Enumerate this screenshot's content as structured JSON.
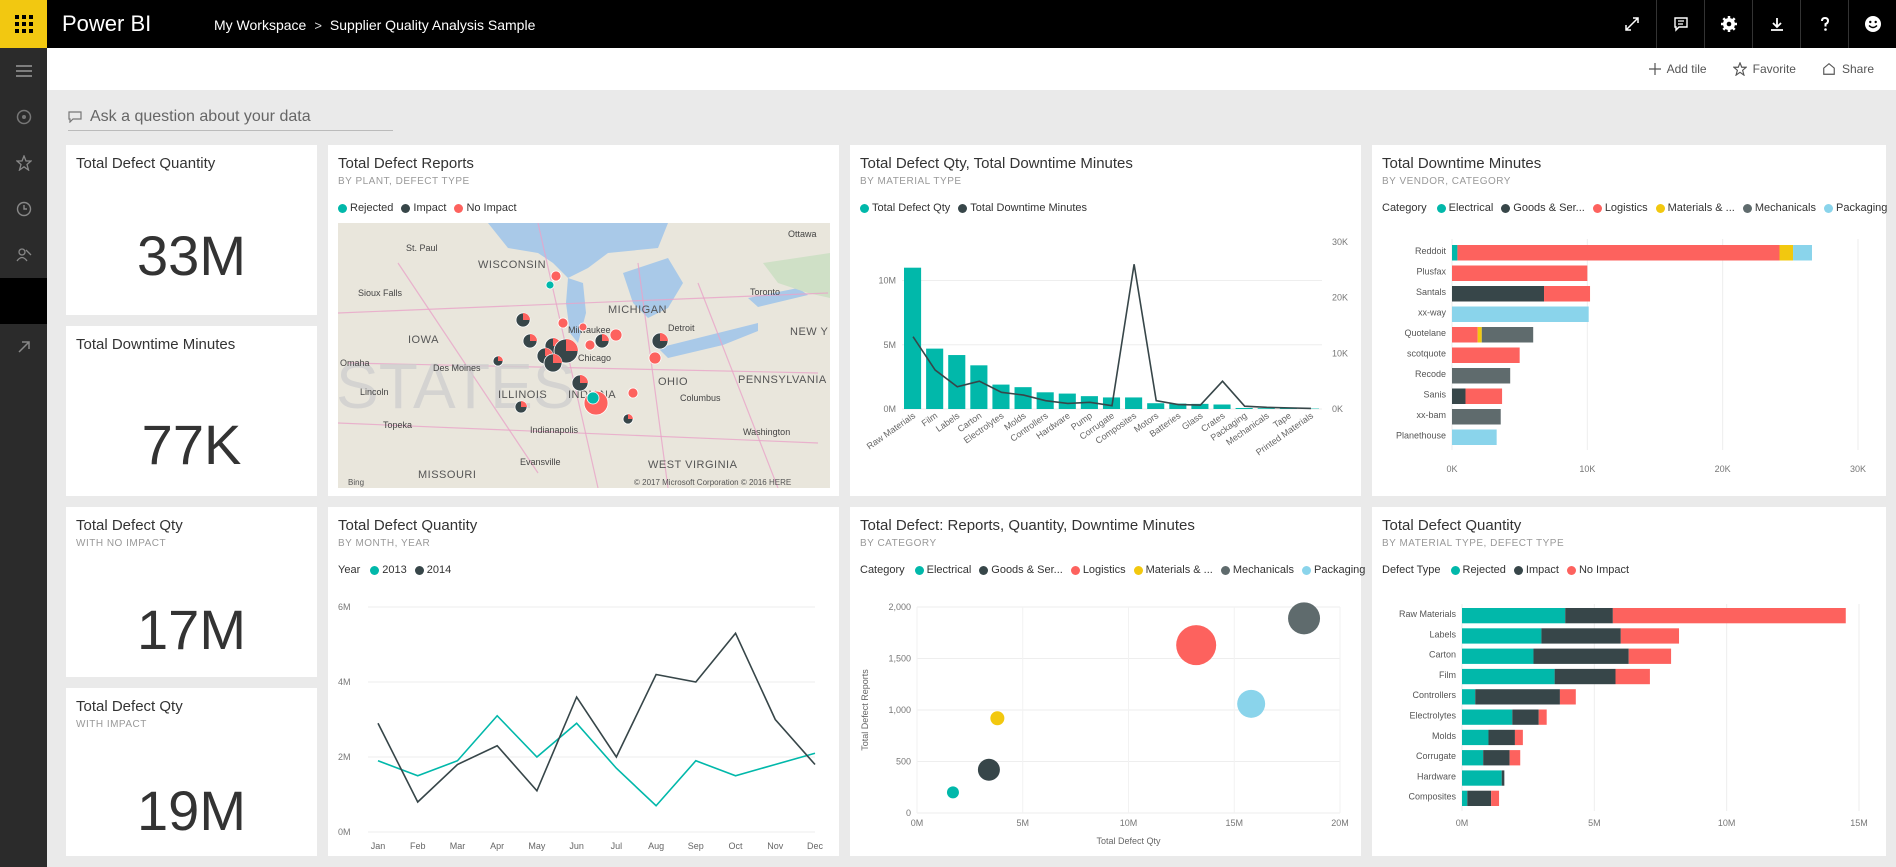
{
  "app": {
    "name": "Power BI",
    "breadcrumb": [
      "My Workspace",
      "Supplier Quality Analysis Sample"
    ],
    "breadcrumb_sep": ">"
  },
  "topbar_icons": [
    "fullscreen-icon",
    "comment-icon",
    "settings-gear-icon",
    "download-icon",
    "help-icon",
    "smiley-feedback-icon"
  ],
  "leftnav_icons": [
    "hamburger-menu-icon",
    "home-icon",
    "favorites-star-icon",
    "recent-clock-icon",
    "apps-icon",
    "workspaces-icon",
    "get-data-arrow-icon"
  ],
  "actions": {
    "add_tile": "Add tile",
    "favorite": "Favorite",
    "share": "Share"
  },
  "qa": {
    "placeholder": "Ask a question about your data"
  },
  "colors": {
    "teal": "#01b8aa",
    "dark": "#374649",
    "red": "#fd625e",
    "yellow": "#f2c80f",
    "gray": "#5f6b6d",
    "lightblue": "#8ad4eb",
    "black": "#000000",
    "brand": "#f2c811"
  },
  "cards": [
    {
      "title": "Total Defect Quantity",
      "subtitle": "",
      "value": "33M"
    },
    {
      "title": "Total Downtime Minutes",
      "subtitle": "",
      "value": "77K"
    },
    {
      "title": "Total Defect Qty",
      "subtitle": "WITH NO IMPACT",
      "value": "17M"
    },
    {
      "title": "Total Defect Qty",
      "subtitle": "WITH IMPACT",
      "value": "19M"
    }
  ],
  "map": {
    "title": "Total Defect Reports",
    "subtitle": "BY PLANT, DEFECT TYPE",
    "legend": [
      "Rejected",
      "Impact",
      "No Impact"
    ],
    "labels": {
      "states": [
        "WISCONSIN",
        "MICHIGAN",
        "IOWA",
        "ILLINOIS",
        "INDIANA",
        "OHIO",
        "PENNSYLVANIA",
        "NEW Y",
        "WEST VIRGINIA",
        "MISSOURI",
        "STATES"
      ],
      "cities": [
        "Ottawa",
        "St. Paul",
        "Toronto",
        "Sioux Falls",
        "Milwaukee",
        "Detroit",
        "Omaha",
        "Des Moines",
        "Chicago",
        "Lincoln",
        "Columbus",
        "Topeka",
        "Indianapolis",
        "Washington",
        "Evansville"
      ],
      "footer_left": "Bing",
      "copyright": "© 2017 Microsoft Corporation  © 2016 HERE"
    }
  },
  "chart_data": [
    {
      "type": "bar",
      "title": "Total Defect Qty, Total Downtime Minutes",
      "subtitle": "BY MATERIAL TYPE",
      "legend": [
        "Total Defect Qty",
        "Total Downtime Minutes"
      ],
      "categories": [
        "Raw Materials",
        "Film",
        "Labels",
        "Carton",
        "Electrolytes",
        "Molds",
        "Controllers",
        "Hardware",
        "Pump",
        "Corrugate",
        "Composites",
        "Motors",
        "Batteries",
        "Glass",
        "Crates",
        "Packaging",
        "Mechanicals",
        "Tape",
        "Printed Materials"
      ],
      "series": [
        {
          "name": "Total Defect Qty",
          "type": "bar",
          "values": [
            11,
            4.7,
            4.2,
            3.4,
            1.9,
            1.7,
            1.3,
            1.2,
            1.0,
            0.9,
            0.9,
            0.45,
            0.42,
            0.4,
            0.35,
            0.08,
            0.06,
            0.05,
            0.03
          ]
        },
        {
          "name": "Total Downtime Minutes",
          "type": "line",
          "values": [
            13000,
            7000,
            4000,
            5000,
            3000,
            2500,
            1500,
            1000,
            1200,
            600,
            26000,
            1500,
            800,
            700,
            5000,
            500,
            300,
            200,
            100
          ]
        }
      ],
      "y_left_ticks": [
        "0M",
        "5M",
        "10M"
      ],
      "y_left_lim": [
        0,
        13
      ],
      "y_right_ticks": [
        "0K",
        "10K",
        "20K",
        "30K"
      ],
      "y_right_lim": [
        0,
        30000
      ]
    },
    {
      "type": "bar",
      "title": "Total Downtime Minutes",
      "subtitle": "BY VENDOR, CATEGORY",
      "legend_title": "Category",
      "legend": [
        "Electrical",
        "Goods & Ser...",
        "Logistics",
        "Materials & ...",
        "Mechanicals",
        "Packaging"
      ],
      "categories": [
        "Reddoit",
        "Plusfax",
        "Santals",
        "xx-way",
        "Quotelane",
        "scotquote",
        "Recode",
        "Sanis",
        "xx-bam",
        "Planethouse"
      ],
      "series": [
        {
          "name": "Electrical",
          "values": [
            400,
            0,
            0,
            0,
            0,
            0,
            0,
            0,
            0,
            0
          ]
        },
        {
          "name": "Goods & Ser...",
          "values": [
            0,
            0,
            6800,
            0,
            0,
            0,
            0,
            1000,
            0,
            0
          ]
        },
        {
          "name": "Logistics",
          "values": [
            23800,
            10000,
            3400,
            0,
            1900,
            5000,
            0,
            2700,
            0,
            0
          ]
        },
        {
          "name": "Materials & ...",
          "values": [
            1000,
            0,
            0,
            0,
            300,
            0,
            0,
            0,
            0,
            0
          ]
        },
        {
          "name": "Mechanicals",
          "values": [
            0,
            0,
            0,
            0,
            3800,
            0,
            4300,
            0,
            3600,
            0
          ]
        },
        {
          "name": "Packaging",
          "values": [
            1400,
            0,
            0,
            10100,
            0,
            0,
            0,
            0,
            0,
            3300
          ]
        }
      ],
      "x_ticks": [
        "0K",
        "10K",
        "20K",
        "30K"
      ],
      "xlim": [
        0,
        30000
      ]
    },
    {
      "type": "line",
      "title": "Total Defect Quantity",
      "subtitle": "BY MONTH, YEAR",
      "legend_title": "Year",
      "legend": [
        "2013",
        "2014"
      ],
      "categories": [
        "Jan",
        "Feb",
        "Mar",
        "Apr",
        "May",
        "Jun",
        "Jul",
        "Aug",
        "Sep",
        "Oct",
        "Nov",
        "Dec"
      ],
      "series": [
        {
          "name": "2013",
          "values": [
            1.9,
            1.5,
            1.9,
            3.1,
            2.0,
            2.9,
            1.7,
            0.7,
            1.9,
            1.5,
            1.8,
            2.1
          ]
        },
        {
          "name": "2014",
          "values": [
            2.9,
            0.8,
            1.8,
            2.3,
            1.1,
            3.6,
            2.0,
            4.2,
            4.0,
            5.3,
            3.0,
            1.8
          ]
        }
      ],
      "y_ticks": [
        "0M",
        "2M",
        "4M",
        "6M"
      ],
      "ylim": [
        0,
        6
      ]
    },
    {
      "type": "scatter",
      "title": "Total Defect: Reports, Quantity, Downtime Minutes",
      "subtitle": "BY CATEGORY",
      "legend_title": "Category",
      "legend": [
        "Electrical",
        "Goods & Ser...",
        "Logistics",
        "Materials & ...",
        "Mechanicals",
        "Packaging"
      ],
      "points": [
        {
          "name": "Electrical",
          "x": 1.7,
          "y": 200,
          "size": 6
        },
        {
          "name": "Goods & Ser...",
          "x": 3.4,
          "y": 420,
          "size": 11
        },
        {
          "name": "Logistics",
          "x": 13.2,
          "y": 1630,
          "size": 20
        },
        {
          "name": "Materials & ...",
          "x": 3.8,
          "y": 920,
          "size": 7
        },
        {
          "name": "Mechanicals",
          "x": 18.3,
          "y": 1890,
          "size": 16
        },
        {
          "name": "Packaging",
          "x": 15.8,
          "y": 1060,
          "size": 14
        }
      ],
      "x_ticks": [
        "0M",
        "5M",
        "10M",
        "15M",
        "20M"
      ],
      "xlim": [
        0,
        20
      ],
      "y_ticks": [
        "0",
        "500",
        "1,000",
        "1,500",
        "2,000"
      ],
      "ylim": [
        0,
        2000
      ],
      "xlabel": "Total Defect Qty",
      "ylabel": "Total Defect Reports"
    },
    {
      "type": "bar",
      "title": "Total Defect Quantity",
      "subtitle": "BY MATERIAL TYPE, DEFECT TYPE",
      "legend_title": "Defect Type",
      "legend": [
        "Rejected",
        "Impact",
        "No Impact"
      ],
      "categories": [
        "Raw Materials",
        "Labels",
        "Carton",
        "Film",
        "Controllers",
        "Electrolytes",
        "Molds",
        "Corrugate",
        "Hardware",
        "Composites"
      ],
      "series": [
        {
          "name": "Rejected",
          "values": [
            3.9,
            3.0,
            2.7,
            3.5,
            0.5,
            1.9,
            1.0,
            0.8,
            1.5,
            0.2
          ]
        },
        {
          "name": "Impact",
          "values": [
            1.8,
            3.0,
            3.6,
            2.3,
            3.2,
            1.0,
            1.0,
            1.0,
            0.1,
            0.9
          ]
        },
        {
          "name": "No Impact",
          "values": [
            8.8,
            2.2,
            1.6,
            1.3,
            0.6,
            0.3,
            0.3,
            0.4,
            0.0,
            0.3
          ]
        }
      ],
      "x_ticks": [
        "0M",
        "5M",
        "10M",
        "15M"
      ],
      "xlim": [
        0,
        15
      ]
    }
  ]
}
